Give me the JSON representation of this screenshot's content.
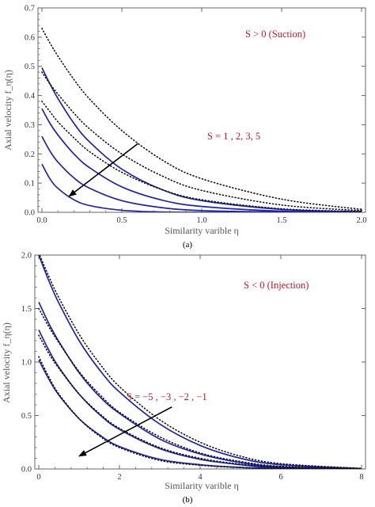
{
  "colors": {
    "solid": "#1f24a8",
    "dotted": "#111111",
    "annotation": "#c0182a",
    "arrow": "#000000",
    "frame": "#666666"
  },
  "chart_data": [
    {
      "type": "line",
      "panel_label": "(a)",
      "xlabel": "Similarity varible η",
      "ylabel": "Axial velocity f_η(η)",
      "xlim": [
        0,
        2.0
      ],
      "ylim": [
        0,
        0.7
      ],
      "xticks": [
        "0.0",
        "0.5",
        "1.0",
        "1.5",
        "2.0"
      ],
      "yticks": [
        "0.0",
        "0.1",
        "0.2",
        "0.3",
        "0.4",
        "0.5",
        "0.6",
        "0.7"
      ],
      "grid": false,
      "legend": "none",
      "annotations": [
        {
          "text": "S > 0 (Suction)",
          "position": "top-right"
        },
        {
          "text": "S =  1 , 2,  3, 5",
          "position": "center-right"
        }
      ],
      "series": [
        {
          "style": "solid",
          "x": [
            0,
            0.05,
            0.1,
            0.2,
            0.3,
            0.5,
            0.75,
            1.0,
            1.5,
            2.0
          ],
          "values": [
            0.495,
            0.44,
            0.39,
            0.305,
            0.24,
            0.148,
            0.078,
            0.04,
            0.01,
            0.002
          ]
        },
        {
          "style": "solid",
          "x": [
            0,
            0.05,
            0.1,
            0.2,
            0.3,
            0.5,
            0.75,
            1.0,
            1.5,
            2.0
          ],
          "values": [
            0.355,
            0.305,
            0.265,
            0.2,
            0.152,
            0.087,
            0.042,
            0.02,
            0.004,
            0.001
          ]
        },
        {
          "style": "solid",
          "x": [
            0,
            0.05,
            0.1,
            0.2,
            0.3,
            0.5,
            0.75,
            1.0,
            1.5,
            2.0
          ],
          "values": [
            0.26,
            0.21,
            0.172,
            0.118,
            0.082,
            0.04,
            0.016,
            0.006,
            0.001,
            0.0
          ]
        },
        {
          "style": "solid",
          "x": [
            0,
            0.05,
            0.1,
            0.2,
            0.3,
            0.5,
            0.75,
            1.0,
            1.5,
            2.0
          ],
          "values": [
            0.165,
            0.115,
            0.082,
            0.043,
            0.023,
            0.007,
            0.001,
            0.0,
            0.0,
            0.0
          ]
        },
        {
          "style": "dotted",
          "x": [
            0,
            0.05,
            0.1,
            0.2,
            0.3,
            0.5,
            0.75,
            1.0,
            1.5,
            2.0
          ],
          "values": [
            0.63,
            0.58,
            0.535,
            0.455,
            0.387,
            0.28,
            0.18,
            0.115,
            0.045,
            0.01
          ]
        },
        {
          "style": "dotted",
          "x": [
            0,
            0.05,
            0.1,
            0.2,
            0.3,
            0.5,
            0.75,
            1.0,
            1.5,
            2.0
          ],
          "values": [
            0.48,
            0.44,
            0.405,
            0.34,
            0.285,
            0.2,
            0.125,
            0.075,
            0.025,
            0.006
          ]
        },
        {
          "style": "dotted",
          "x": [
            0,
            0.05,
            0.1,
            0.2,
            0.3,
            0.5,
            0.75,
            1.0,
            1.5,
            2.0
          ],
          "values": [
            0.38,
            0.345,
            0.31,
            0.255,
            0.207,
            0.137,
            0.078,
            0.043,
            0.012,
            0.003
          ]
        }
      ],
      "arrow": {
        "from": [
          0.6,
          0.235
        ],
        "to": [
          0.17,
          0.055
        ]
      }
    },
    {
      "type": "line",
      "panel_label": "(b)",
      "xlabel": "Similarity varible η",
      "ylabel": "Axial velocity f_η(η)",
      "xlim": [
        0,
        8
      ],
      "ylim": [
        0,
        2.0
      ],
      "xticks": [
        "0",
        "2",
        "4",
        "6",
        "8"
      ],
      "yticks": [
        "0.0",
        "0.5",
        "1.0",
        "1.5",
        "2.0"
      ],
      "grid": false,
      "legend": "none",
      "annotations": [
        {
          "text": "S < 0 (Injection)",
          "position": "top-right"
        },
        {
          "text": "S =  −5 , −3 , −2 , −1",
          "position": "center-right"
        }
      ],
      "series": [
        {
          "style": "solid",
          "x": [
            0,
            0.25,
            0.5,
            1,
            1.5,
            2,
            3,
            4,
            5,
            6,
            8
          ],
          "values": [
            2.0,
            1.76,
            1.55,
            1.2,
            0.93,
            0.72,
            0.42,
            0.22,
            0.1,
            0.04,
            0.004
          ]
        },
        {
          "style": "solid",
          "x": [
            0,
            0.25,
            0.5,
            1,
            1.5,
            2,
            3,
            4,
            5,
            6,
            8
          ],
          "values": [
            1.56,
            1.36,
            1.19,
            0.9,
            0.68,
            0.52,
            0.28,
            0.14,
            0.06,
            0.02,
            0.002
          ]
        },
        {
          "style": "solid",
          "x": [
            0,
            0.25,
            0.5,
            1,
            1.5,
            2,
            3,
            4,
            5,
            6,
            8
          ],
          "values": [
            1.3,
            1.11,
            0.95,
            0.7,
            0.51,
            0.37,
            0.19,
            0.09,
            0.04,
            0.01,
            0.001
          ]
        },
        {
          "style": "solid",
          "x": [
            0,
            0.25,
            0.5,
            1,
            1.5,
            2,
            3,
            4,
            5,
            6,
            8
          ],
          "values": [
            1.02,
            0.84,
            0.69,
            0.47,
            0.32,
            0.21,
            0.09,
            0.04,
            0.015,
            0.005,
            0.0
          ]
        },
        {
          "style": "dotted",
          "x": [
            0,
            0.25,
            0.5,
            1,
            1.5,
            2,
            3,
            4,
            5,
            6,
            8
          ],
          "values": [
            2.02,
            1.8,
            1.6,
            1.26,
            0.99,
            0.77,
            0.46,
            0.25,
            0.12,
            0.05,
            0.005
          ]
        },
        {
          "style": "dotted",
          "x": [
            0,
            0.25,
            0.5,
            1,
            1.5,
            2,
            3,
            4,
            5,
            6,
            8
          ],
          "values": [
            1.5,
            1.33,
            1.18,
            0.91,
            0.7,
            0.53,
            0.3,
            0.15,
            0.07,
            0.025,
            0.002
          ]
        },
        {
          "style": "dotted",
          "x": [
            0,
            0.25,
            0.5,
            1,
            1.5,
            2,
            3,
            4,
            5,
            6,
            8
          ],
          "values": [
            1.25,
            1.08,
            0.94,
            0.7,
            0.52,
            0.38,
            0.2,
            0.1,
            0.045,
            0.015,
            0.001
          ]
        },
        {
          "style": "dotted",
          "x": [
            0,
            0.25,
            0.5,
            1,
            1.5,
            2,
            3,
            4,
            5,
            6,
            8
          ],
          "values": [
            1.05,
            0.86,
            0.7,
            0.47,
            0.31,
            0.2,
            0.08,
            0.035,
            0.012,
            0.004,
            0.0
          ]
        }
      ],
      "arrow": {
        "from": [
          3.3,
          0.58
        ],
        "to": [
          1.0,
          0.12
        ]
      }
    }
  ]
}
